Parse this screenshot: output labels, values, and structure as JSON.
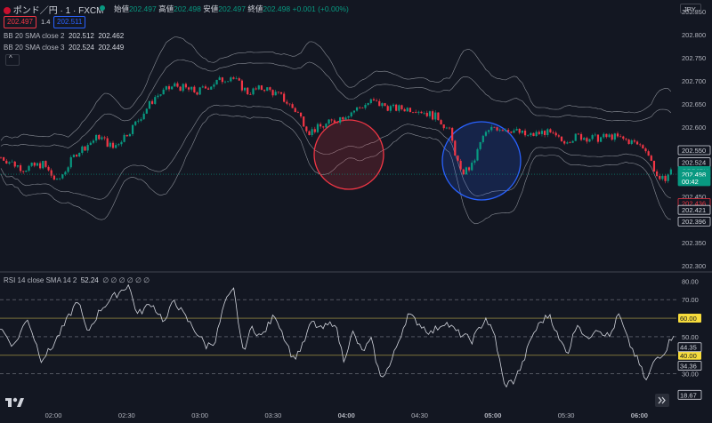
{
  "header": {
    "symbol": "ポンド／円 · 1 · FXCM",
    "open_label": "始値",
    "open_value": "202.497",
    "high_label": "高値",
    "high_value": "202.498",
    "low_label": "安値",
    "low_value": "202.497",
    "close_label": "終値",
    "close_value": "202.498",
    "change": "+0.001 (+0.00%)",
    "sell_price": "202.497",
    "spread": "1.4",
    "buy_price": "202.511",
    "currency": "JPY"
  },
  "overlays": [
    {
      "name": "BB 20 SMA close 2",
      "v1": "202.512",
      "v2": "202.462"
    },
    {
      "name": "BB 20 SMA close 3",
      "v1": "202.524",
      "v2": "202.449"
    }
  ],
  "rsi_legend": {
    "name": "RSI 14 close SMA 14 2",
    "value": "52.24",
    "dots": "∅ ∅ ∅ ∅ ∅ ∅"
  },
  "chart_data": {
    "type": "candlestick+line",
    "price_axis": {
      "ticks": [
        "202.850",
        "202.800",
        "202.750",
        "202.700",
        "202.650",
        "202.600",
        "202.550",
        "202.500",
        "202.450",
        "202.400",
        "202.350",
        "202.300"
      ],
      "ylim": [
        202.287,
        202.863
      ]
    },
    "time_axis": {
      "ticks": [
        "02:00",
        "02:30",
        "03:00",
        "03:30",
        "04:00",
        "04:30",
        "05:00",
        "05:30",
        "06:00"
      ]
    },
    "price_labels": [
      {
        "text": "202.550",
        "value": 202.55,
        "kind": "outline"
      },
      {
        "text": "202.524",
        "value": 202.524,
        "kind": "outline"
      },
      {
        "text": "GBPJPY",
        "value": 202.505,
        "kind": "green"
      },
      {
        "text": "202.498",
        "value": 202.498,
        "kind": "green"
      },
      {
        "text": "00:42",
        "value": 202.483,
        "kind": "green"
      },
      {
        "text": "202.436",
        "value": 202.436,
        "kind": "red"
      },
      {
        "text": "202.421",
        "value": 202.421,
        "kind": "outline"
      },
      {
        "text": "202.396",
        "value": 202.396,
        "kind": "outline"
      }
    ],
    "price_keys": [
      [
        0,
        202.535
      ],
      [
        8,
        202.51
      ],
      [
        15,
        202.52
      ],
      [
        20,
        202.48
      ],
      [
        27,
        202.545
      ],
      [
        35,
        202.58
      ],
      [
        40,
        202.555
      ],
      [
        47,
        202.6
      ],
      [
        55,
        202.665
      ],
      [
        62,
        202.69
      ],
      [
        70,
        202.675
      ],
      [
        76,
        202.695
      ],
      [
        82,
        202.71
      ],
      [
        88,
        202.675
      ],
      [
        94,
        202.685
      ],
      [
        100,
        202.665
      ],
      [
        106,
        202.63
      ],
      [
        110,
        202.59
      ],
      [
        116,
        202.605
      ],
      [
        124,
        202.63
      ],
      [
        132,
        202.655
      ],
      [
        140,
        202.64
      ],
      [
        148,
        202.64
      ],
      [
        156,
        202.62
      ],
      [
        160,
        202.59
      ],
      [
        164,
        202.5
      ],
      [
        168,
        202.515
      ],
      [
        172,
        202.58
      ],
      [
        176,
        202.6
      ],
      [
        182,
        202.595
      ],
      [
        188,
        202.58
      ],
      [
        194,
        202.59
      ],
      [
        200,
        202.57
      ],
      [
        206,
        202.58
      ],
      [
        212,
        202.575
      ],
      [
        218,
        202.58
      ],
      [
        224,
        202.57
      ],
      [
        230,
        202.555
      ],
      [
        235,
        202.48
      ],
      [
        240,
        202.51
      ]
    ],
    "rsi_axis": {
      "ticks": [
        "80.00",
        "70.00",
        "60.00",
        "50.00",
        "40.00",
        "30.00"
      ],
      "ylim": [
        15,
        83
      ]
    },
    "rsi_bands": [
      70,
      50,
      30
    ],
    "rsi_lines": [
      {
        "value": 60,
        "label": "60.00"
      },
      {
        "value": 40,
        "label": "40.00"
      }
    ],
    "rsi_labels": [
      {
        "text": "44.35",
        "value": 44.35
      },
      {
        "text": "34.36",
        "value": 34.36
      },
      {
        "text": "18.67",
        "value": 18.67
      }
    ],
    "rsi_keys": [
      [
        0,
        55
      ],
      [
        6,
        45
      ],
      [
        12,
        60
      ],
      [
        18,
        38
      ],
      [
        22,
        43
      ],
      [
        28,
        56
      ],
      [
        34,
        70
      ],
      [
        38,
        52
      ],
      [
        44,
        65
      ],
      [
        50,
        72
      ],
      [
        56,
        78
      ],
      [
        60,
        62
      ],
      [
        66,
        68
      ],
      [
        72,
        58
      ],
      [
        76,
        70
      ],
      [
        80,
        62
      ],
      [
        86,
        52
      ],
      [
        90,
        45
      ],
      [
        94,
        48
      ],
      [
        98,
        68
      ],
      [
        102,
        75
      ],
      [
        106,
        42
      ],
      [
        110,
        55
      ],
      [
        114,
        50
      ],
      [
        120,
        62
      ],
      [
        124,
        50
      ],
      [
        128,
        38
      ],
      [
        132,
        45
      ],
      [
        136,
        58
      ],
      [
        140,
        54
      ],
      [
        146,
        58
      ],
      [
        150,
        38
      ],
      [
        154,
        52
      ],
      [
        158,
        42
      ],
      [
        162,
        48
      ],
      [
        166,
        28
      ],
      [
        170,
        34
      ],
      [
        174,
        48
      ],
      [
        178,
        62
      ],
      [
        182,
        58
      ],
      [
        188,
        52
      ],
      [
        194,
        58
      ],
      [
        200,
        52
      ],
      [
        206,
        48
      ],
      [
        212,
        60
      ],
      [
        216,
        50
      ],
      [
        220,
        24
      ],
      [
        224,
        26
      ],
      [
        228,
        35
      ],
      [
        232,
        50
      ],
      [
        236,
        58
      ],
      [
        240,
        62
      ],
      [
        244,
        48
      ],
      [
        248,
        42
      ],
      [
        252,
        58
      ],
      [
        256,
        48
      ],
      [
        260,
        55
      ],
      [
        266,
        50
      ],
      [
        270,
        62
      ],
      [
        274,
        48
      ],
      [
        278,
        38
      ],
      [
        282,
        26
      ],
      [
        286,
        38
      ],
      [
        290,
        42
      ],
      [
        294,
        52
      ]
    ]
  }
}
